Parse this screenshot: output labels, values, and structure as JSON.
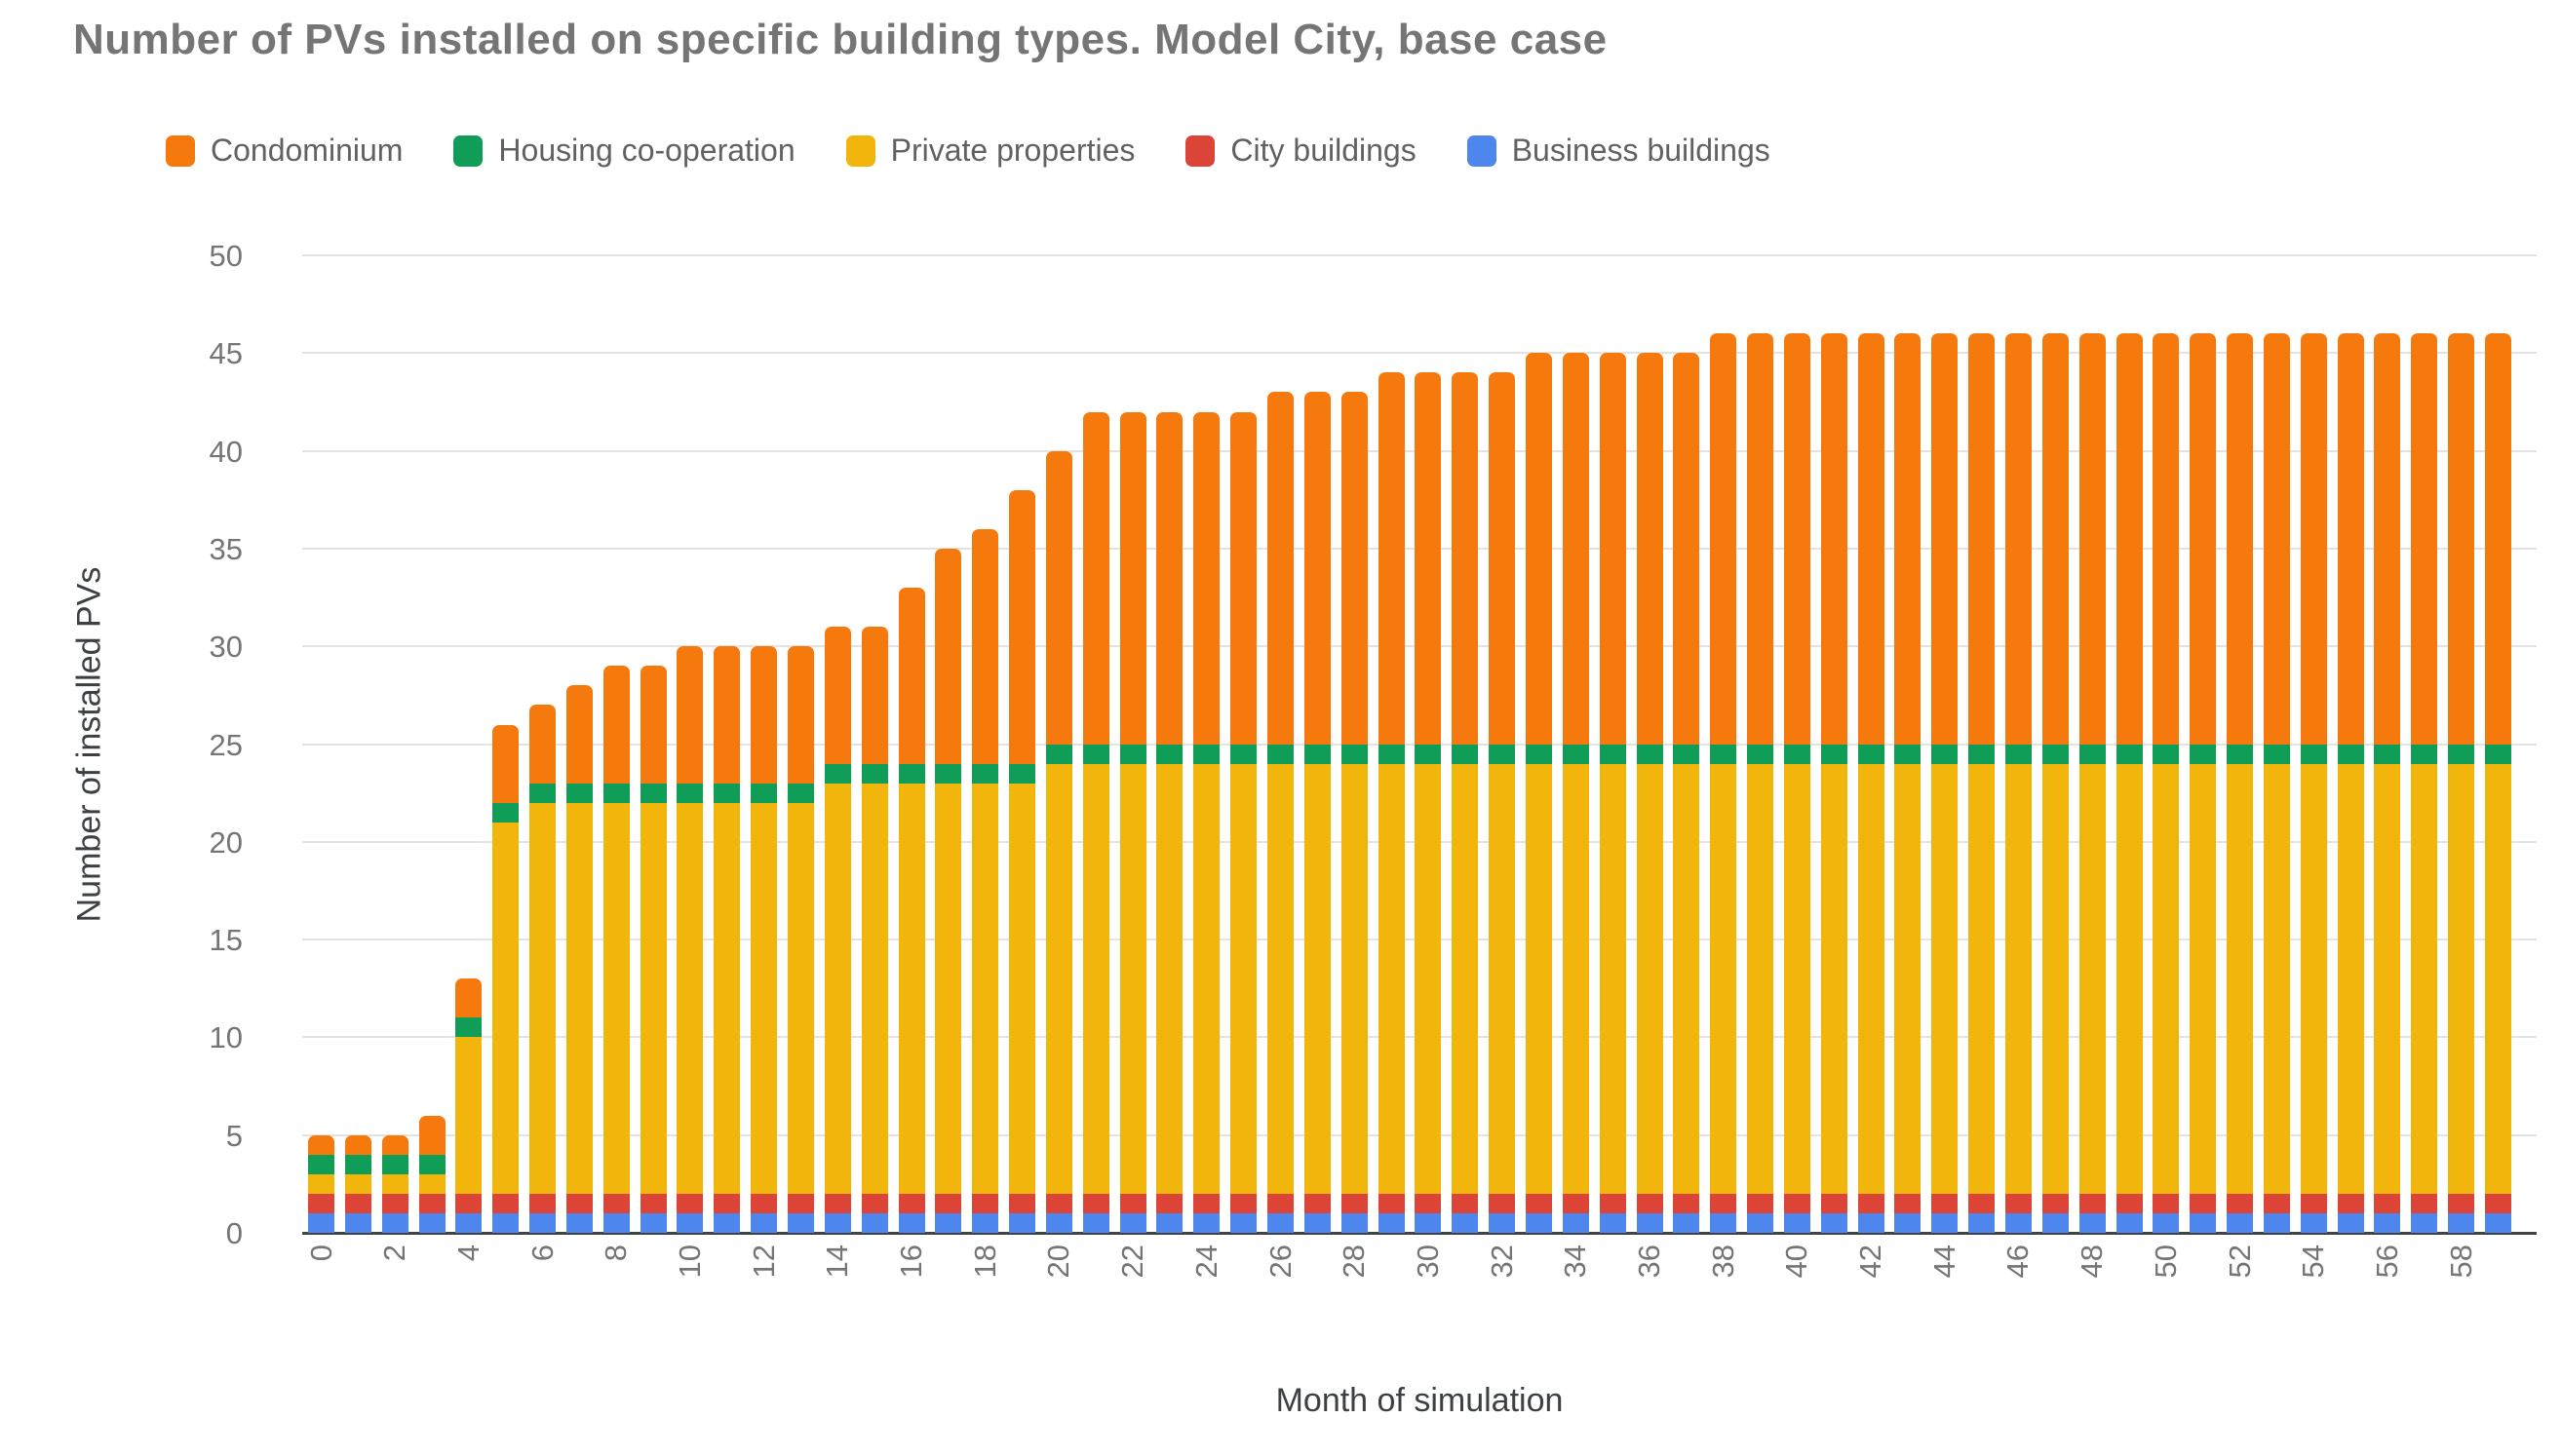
{
  "title": "Number of PVs installed on specific building types. Model City, base case",
  "legend": [
    {
      "label": "Condominium",
      "color": "#f5790d"
    },
    {
      "label": "Housing co-operation",
      "color": "#109d58"
    },
    {
      "label": "Private properties",
      "color": "#f2b50c"
    },
    {
      "label": "City buildings",
      "color": "#db4437"
    },
    {
      "label": "Business buildings",
      "color": "#4d86ec"
    }
  ],
  "chart_data": {
    "type": "bar",
    "stacked": true,
    "title": "Number of PVs installed on specific building types. Model City, base case",
    "xlabel": "Month of simulation",
    "ylabel": "Number of installed PVs",
    "categories": [
      0,
      1,
      2,
      3,
      4,
      5,
      6,
      7,
      8,
      9,
      10,
      11,
      12,
      13,
      14,
      15,
      16,
      17,
      18,
      19,
      20,
      21,
      22,
      23,
      24,
      25,
      26,
      27,
      28,
      29,
      30,
      31,
      32,
      33,
      34,
      35,
      36,
      37,
      38,
      39,
      40,
      41,
      42,
      43,
      44,
      45,
      46,
      47,
      48,
      49,
      50,
      51,
      52,
      53,
      54,
      55,
      56,
      57,
      58,
      59
    ],
    "x_tick_step": 2,
    "ylim": [
      0,
      50
    ],
    "ytick_step": 5,
    "grid": true,
    "legend_position": "top",
    "series": [
      {
        "name": "Business buildings",
        "color": "#4d86ec",
        "values": [
          1,
          1,
          1,
          1,
          1,
          1,
          1,
          1,
          1,
          1,
          1,
          1,
          1,
          1,
          1,
          1,
          1,
          1,
          1,
          1,
          1,
          1,
          1,
          1,
          1,
          1,
          1,
          1,
          1,
          1,
          1,
          1,
          1,
          1,
          1,
          1,
          1,
          1,
          1,
          1,
          1,
          1,
          1,
          1,
          1,
          1,
          1,
          1,
          1,
          1,
          1,
          1,
          1,
          1,
          1,
          1,
          1,
          1,
          1,
          1
        ]
      },
      {
        "name": "City buildings",
        "color": "#db4437",
        "values": [
          1,
          1,
          1,
          1,
          1,
          1,
          1,
          1,
          1,
          1,
          1,
          1,
          1,
          1,
          1,
          1,
          1,
          1,
          1,
          1,
          1,
          1,
          1,
          1,
          1,
          1,
          1,
          1,
          1,
          1,
          1,
          1,
          1,
          1,
          1,
          1,
          1,
          1,
          1,
          1,
          1,
          1,
          1,
          1,
          1,
          1,
          1,
          1,
          1,
          1,
          1,
          1,
          1,
          1,
          1,
          1,
          1,
          1,
          1,
          1
        ]
      },
      {
        "name": "Private properties",
        "color": "#f2b50c",
        "values": [
          1,
          1,
          1,
          1,
          8,
          19,
          20,
          20,
          20,
          20,
          20,
          20,
          20,
          20,
          21,
          21,
          21,
          21,
          21,
          21,
          22,
          22,
          22,
          22,
          22,
          22,
          22,
          22,
          22,
          22,
          22,
          22,
          22,
          22,
          22,
          22,
          22,
          22,
          22,
          22,
          22,
          22,
          22,
          22,
          22,
          22,
          22,
          22,
          22,
          22,
          22,
          22,
          22,
          22,
          22,
          22,
          22,
          22,
          22,
          22
        ]
      },
      {
        "name": "Housing co-operation",
        "color": "#109d58",
        "values": [
          1,
          1,
          1,
          1,
          1,
          1,
          1,
          1,
          1,
          1,
          1,
          1,
          1,
          1,
          1,
          1,
          1,
          1,
          1,
          1,
          1,
          1,
          1,
          1,
          1,
          1,
          1,
          1,
          1,
          1,
          1,
          1,
          1,
          1,
          1,
          1,
          1,
          1,
          1,
          1,
          1,
          1,
          1,
          1,
          1,
          1,
          1,
          1,
          1,
          1,
          1,
          1,
          1,
          1,
          1,
          1,
          1,
          1,
          1,
          1
        ]
      },
      {
        "name": "Condominium",
        "color": "#f5790d",
        "values": [
          1,
          1,
          1,
          2,
          2,
          4,
          4,
          5,
          6,
          6,
          7,
          7,
          7,
          7,
          7,
          7,
          9,
          11,
          12,
          14,
          15,
          17,
          17,
          17,
          17,
          17,
          18,
          18,
          18,
          19,
          19,
          19,
          19,
          20,
          20,
          20,
          20,
          20,
          21,
          21,
          21,
          21,
          21,
          21,
          21,
          21,
          21,
          21,
          21,
          21,
          21,
          21,
          21,
          21,
          21,
          21,
          21,
          21,
          21,
          21
        ]
      }
    ],
    "totals": [
      5,
      5,
      5,
      6,
      13,
      26,
      27,
      28,
      29,
      29,
      30,
      30,
      30,
      30,
      31,
      31,
      33,
      35,
      36,
      38,
      40,
      42,
      42,
      42,
      42,
      42,
      43,
      43,
      43,
      44,
      44,
      44,
      44,
      45,
      45,
      45,
      45,
      45,
      46,
      46,
      46,
      46,
      46,
      46,
      46,
      46,
      46,
      46,
      46,
      46,
      46,
      46,
      46,
      46,
      46,
      46,
      46,
      46,
      46,
      46
    ]
  },
  "axis": {
    "y_ticks": [
      0,
      5,
      10,
      15,
      20,
      25,
      30,
      35,
      40,
      45,
      50
    ],
    "x_title": "Month of simulation",
    "y_title": "Number of installed PVs"
  },
  "colors": {
    "title_text": "#757575",
    "legend_text": "#616161",
    "tick_text": "#757575",
    "axis_title_text": "#3c4043",
    "gridline": "#e3e3e3",
    "baseline": "#424242",
    "background": "#ffffff"
  }
}
